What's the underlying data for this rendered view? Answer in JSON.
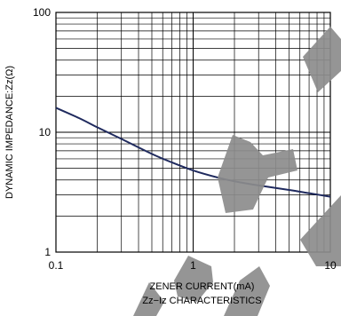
{
  "chart_data": {
    "type": "line",
    "title": "",
    "caption": "Zz−Iz CHARACTERISTICS",
    "xlabel": "ZENER CURRENT(mA)",
    "ylabel": "DYNAMIC IMPEDANCE:Zz(Ω)",
    "xscale": "log",
    "yscale": "log",
    "xlim": [
      0.1,
      10
    ],
    "ylim": [
      1,
      100
    ],
    "x_ticks": [
      {
        "value": 0.1,
        "label": "0.1"
      },
      {
        "value": 1,
        "label": "1"
      },
      {
        "value": 10,
        "label": "10"
      }
    ],
    "y_ticks": [
      {
        "value": 1,
        "label": "1"
      },
      {
        "value": 10,
        "label": "10"
      },
      {
        "value": 100,
        "label": "100"
      }
    ],
    "grid": true,
    "series": [
      {
        "color": "#1f2a5e",
        "x": [
          0.1,
          0.15,
          0.2,
          0.3,
          0.5,
          0.7,
          1,
          1.5,
          2,
          3,
          5,
          7,
          10
        ],
        "y": [
          16,
          13,
          11,
          8.8,
          6.6,
          5.6,
          4.8,
          4.2,
          3.9,
          3.6,
          3.3,
          3.1,
          2.9
        ]
      }
    ],
    "watermark_color": "#8c8c8c"
  }
}
